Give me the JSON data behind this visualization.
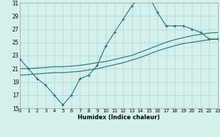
{
  "xlabel": "Humidex (Indice chaleur)",
  "bg_color": "#d4f0ec",
  "grid_color": "#b0d8d4",
  "line_color": "#1a6b6b",
  "xlim": [
    0,
    23
  ],
  "ylim": [
    15,
    31
  ],
  "yticks": [
    15,
    17,
    19,
    21,
    23,
    25,
    27,
    29,
    31
  ],
  "xticks": [
    0,
    1,
    2,
    3,
    4,
    5,
    6,
    7,
    8,
    9,
    10,
    11,
    12,
    13,
    14,
    15,
    16,
    17,
    18,
    19,
    20,
    21,
    22,
    23
  ],
  "curve1_x": [
    0,
    1,
    2,
    3,
    4,
    5,
    6,
    7,
    8,
    9,
    10,
    11,
    12,
    13,
    14,
    15,
    16,
    17,
    18,
    19,
    20,
    21,
    22,
    23
  ],
  "curve1_y": [
    22.5,
    21.0,
    19.5,
    18.5,
    17.0,
    15.5,
    17.0,
    19.5,
    20.0,
    21.5,
    24.5,
    26.5,
    28.5,
    30.5,
    32.0,
    32.0,
    29.5,
    27.5,
    27.5,
    27.5,
    27.0,
    26.5,
    25.5,
    25.5
  ],
  "curve2_x": [
    0,
    1,
    2,
    3,
    4,
    5,
    6,
    7,
    8,
    9,
    10,
    11,
    12,
    13,
    14,
    15,
    16,
    17,
    18,
    19,
    20,
    21,
    22,
    23
  ],
  "curve2_y": [
    21.0,
    21.0,
    21.1,
    21.2,
    21.3,
    21.3,
    21.4,
    21.5,
    21.7,
    21.9,
    22.1,
    22.4,
    22.7,
    23.0,
    23.5,
    24.0,
    24.5,
    25.0,
    25.4,
    25.7,
    26.0,
    26.2,
    26.4,
    26.5
  ],
  "curve3_x": [
    0,
    1,
    2,
    3,
    4,
    5,
    6,
    7,
    8,
    9,
    10,
    11,
    12,
    13,
    14,
    15,
    16,
    17,
    18,
    19,
    20,
    21,
    22,
    23
  ],
  "curve3_y": [
    20.0,
    20.1,
    20.2,
    20.3,
    20.4,
    20.4,
    20.5,
    20.6,
    20.8,
    21.0,
    21.3,
    21.6,
    21.9,
    22.3,
    22.7,
    23.2,
    23.7,
    24.1,
    24.5,
    24.8,
    25.0,
    25.2,
    25.4,
    25.5
  ]
}
